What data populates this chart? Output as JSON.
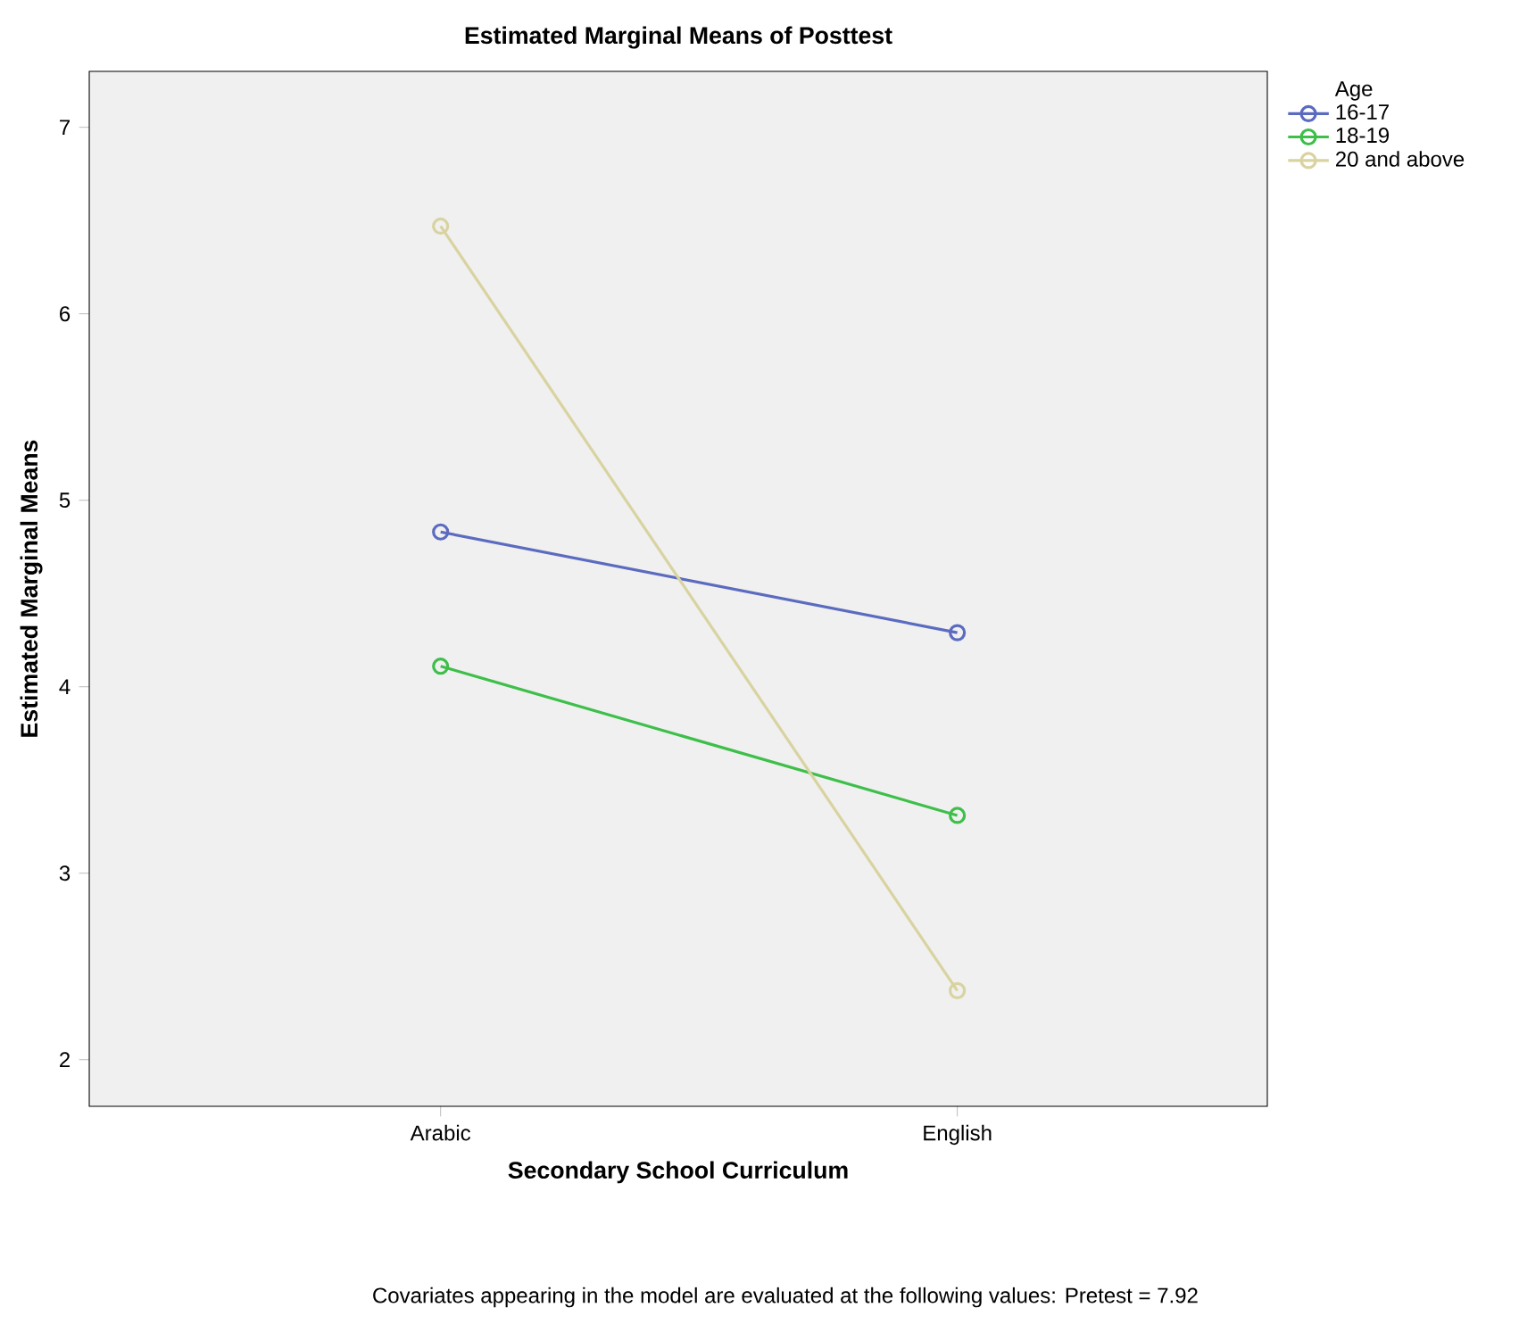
{
  "chart_data": {
    "type": "line",
    "title": "Estimated Marginal Means of Posttest",
    "xlabel": "Secondary School Curriculum",
    "ylabel": "Estimated Marginal Means",
    "legend_title": "Age",
    "categories": [
      "Arabic",
      "English"
    ],
    "series": [
      {
        "name": "16-17",
        "color": "#5b6bbf",
        "values": [
          4.83,
          4.29
        ]
      },
      {
        "name": "18-19",
        "color": "#3dbf4a",
        "values": [
          4.11,
          3.31
        ]
      },
      {
        "name": "20 and above",
        "color": "#d8d3a0",
        "values": [
          6.47,
          2.37
        ]
      }
    ],
    "ylim": [
      1.75,
      7.3
    ],
    "yticks": [
      2,
      3,
      4,
      5,
      6,
      7
    ],
    "grid": false,
    "legend": "top right",
    "marker": "circle",
    "line_style": "solid",
    "annotations": [
      "Covariates appearing in the model are evaluated at the following values: Pretest = 7.92"
    ]
  }
}
